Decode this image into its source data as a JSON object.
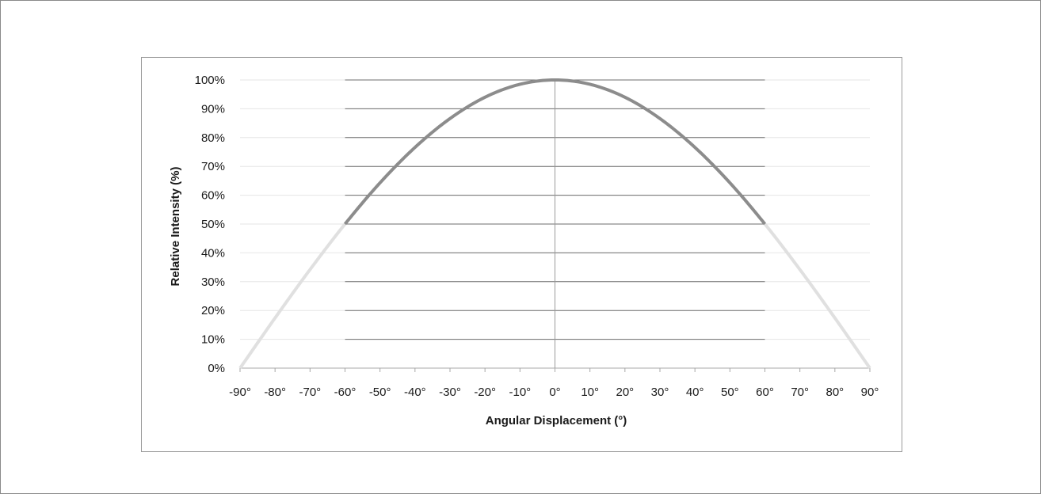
{
  "chart_data": {
    "type": "line",
    "title": "",
    "xlabel": "Angular Displacement (°)",
    "ylabel": "Relative Intensity (%)",
    "xlim": [
      -90,
      90
    ],
    "ylim": [
      0,
      100
    ],
    "x_tick_labels": [
      "-90°",
      "-80°",
      "-70°",
      "-60°",
      "-50°",
      "-40°",
      "-30°",
      "-20°",
      "-10°",
      "0°",
      "10°",
      "20°",
      "30°",
      "40°",
      "50°",
      "60°",
      "70°",
      "80°",
      "90°"
    ],
    "y_tick_labels": [
      "0%",
      "10%",
      "20%",
      "30%",
      "40%",
      "50%",
      "60%",
      "70%",
      "80%",
      "90%",
      "100%"
    ],
    "grid": true,
    "legend": "none",
    "colors": {
      "core": "#8c8c8c",
      "tail": "#e0e0e0",
      "grid_core": "#6e6e6e",
      "grid_tail": "#e6e6e6"
    },
    "highlight_range": [
      -60,
      60
    ],
    "series": [
      {
        "x": [
          -90,
          -80,
          -70,
          -60,
          -50,
          -40,
          -30,
          -20,
          -10,
          0,
          10,
          20,
          30,
          40,
          50,
          60,
          70,
          80,
          90
        ],
        "y": [
          0,
          17.4,
          34.2,
          50,
          64.3,
          76.6,
          86.6,
          94,
          98.5,
          100,
          98.5,
          94,
          86.6,
          76.6,
          64.3,
          50,
          34.2,
          17.4,
          0
        ]
      }
    ]
  }
}
